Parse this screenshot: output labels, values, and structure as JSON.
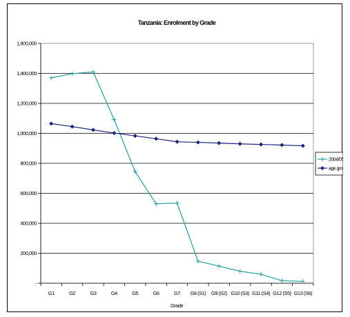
{
  "chart_data": {
    "type": "line",
    "title": "Tanzania: Enrolment by Grade",
    "xlabel": "Grade",
    "ylabel": "",
    "categories": [
      "G1",
      "G2",
      "G3",
      "G4",
      "G5",
      "G6",
      "G7",
      "G8 (S1)",
      "G9 (S2)",
      "G10 (S3)",
      "G11 (S4)",
      "G12 (S5)",
      "G13 (S6)"
    ],
    "ylim": [
      0,
      1600000
    ],
    "yticks": [
      {
        "value": 0,
        "label": "-"
      },
      {
        "value": 200000,
        "label": "200,000"
      },
      {
        "value": 400000,
        "label": "400,000"
      },
      {
        "value": 600000,
        "label": "600,000"
      },
      {
        "value": 800000,
        "label": "800,000"
      },
      {
        "value": 1000000,
        "label": "1,000,000"
      },
      {
        "value": 1200000,
        "label": "1,200,000"
      },
      {
        "value": 1400000,
        "label": "1,400,000"
      },
      {
        "value": 1600000,
        "label": "1,600,000"
      }
    ],
    "grid": true,
    "legend": "right",
    "series": [
      {
        "name": "2004/05",
        "color": "#20A0A0",
        "marker": "plus",
        "values": [
          1370000,
          1398000,
          1410000,
          1092000,
          745000,
          530000,
          535000,
          147000,
          114000,
          80000,
          60000,
          17000,
          12000
        ]
      },
      {
        "name": "age group",
        "color": "#1A237E",
        "marker": "diamond",
        "values": [
          1065000,
          1045000,
          1023000,
          1002000,
          983000,
          964000,
          944000,
          940000,
          935000,
          930000,
          926000,
          922000,
          917000
        ]
      }
    ]
  }
}
